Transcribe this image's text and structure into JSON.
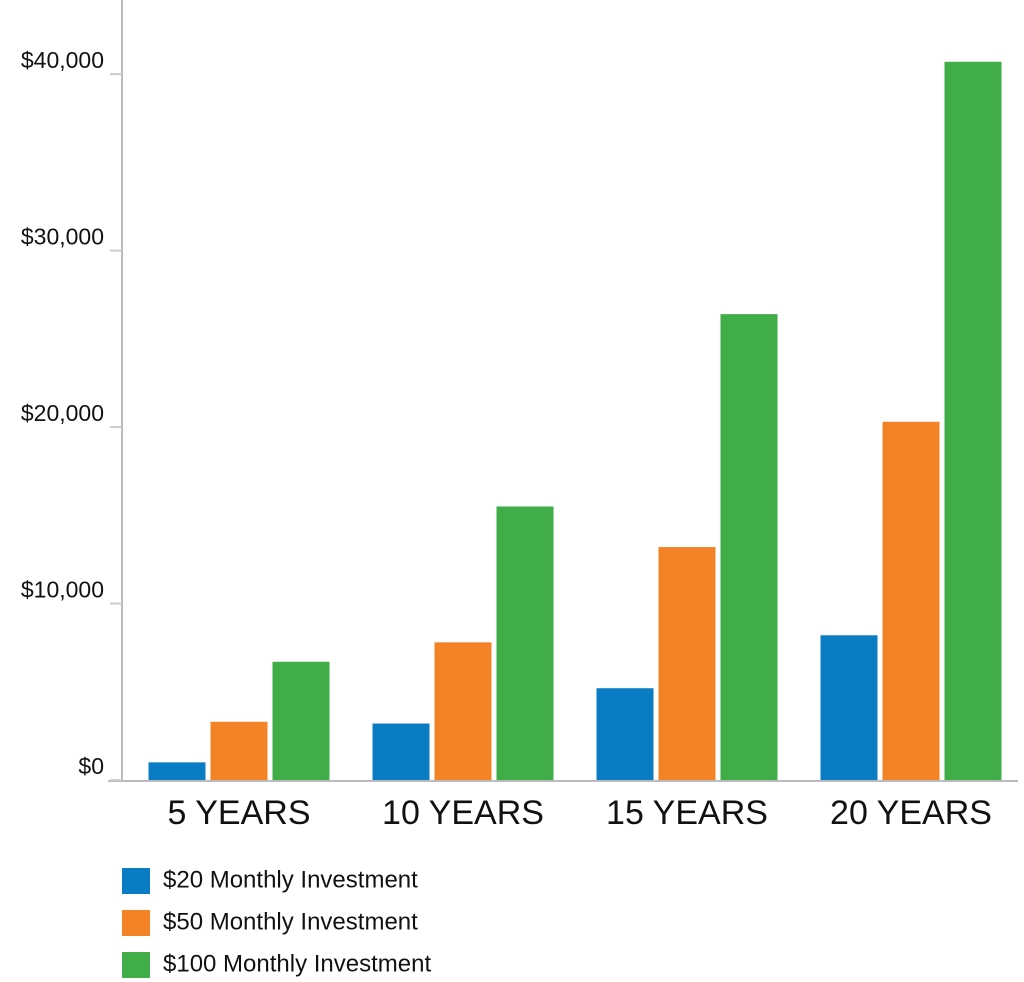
{
  "chart_data": {
    "type": "bar",
    "categories": [
      "5 YEARS",
      "10 YEARS",
      "15 YEARS",
      "20 YEARS"
    ],
    "series": [
      {
        "name": "$20 Monthly Investment",
        "color": "#0a7cc4",
        "values": [
          1000,
          3200,
          5200,
          8200
        ]
      },
      {
        "name": "$50 Monthly Investment",
        "color": "#f48226",
        "values": [
          3300,
          7800,
          13200,
          20300
        ]
      },
      {
        "name": "$100 Monthly Investment",
        "color": "#41ad49",
        "values": [
          6700,
          15500,
          26400,
          40700
        ]
      }
    ],
    "ylim": [
      0,
      44200
    ],
    "yticks": [
      {
        "value": 0,
        "label": "$0"
      },
      {
        "value": 10000,
        "label": "$10,000"
      },
      {
        "value": 20000,
        "label": "$20,000"
      },
      {
        "value": 30000,
        "label": "$30,000"
      },
      {
        "value": 40000,
        "label": "$40,000"
      }
    ]
  }
}
